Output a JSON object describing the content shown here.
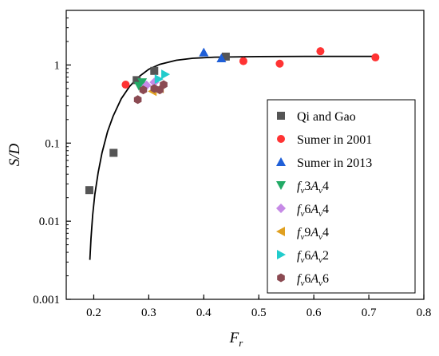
{
  "chart_data": {
    "type": "scatter",
    "title": "",
    "xlabel": {
      "main": "F",
      "sub": "r"
    },
    "ylabel": "S/D",
    "xlim": [
      0.15,
      0.8
    ],
    "ylim": [
      0.001,
      5
    ],
    "yscale": "log",
    "grid": false,
    "legend_position": "right",
    "x_ticks": [
      {
        "value": 0.2,
        "label": "0.2"
      },
      {
        "value": 0.3,
        "label": "0.3"
      },
      {
        "value": 0.4,
        "label": "0.4"
      },
      {
        "value": 0.5,
        "label": "0.5"
      },
      {
        "value": 0.6,
        "label": "0.6"
      },
      {
        "value": 0.7,
        "label": "0.7"
      },
      {
        "value": 0.8,
        "label": "0.8"
      }
    ],
    "y_ticks": [
      {
        "value": 0.001,
        "label": "0.001"
      },
      {
        "value": 0.01,
        "label": "0.01"
      },
      {
        "value": 0.1,
        "label": "0.1"
      },
      {
        "value": 1,
        "label": "1"
      }
    ],
    "series": [
      {
        "name": "Qi and Gao",
        "marker": "square",
        "color": "#555555",
        "points": [
          [
            0.192,
            0.025
          ],
          [
            0.236,
            0.075
          ],
          [
            0.278,
            0.64
          ],
          [
            0.31,
            0.84
          ],
          [
            0.44,
            1.28
          ]
        ]
      },
      {
        "name": "Sumer in 2001",
        "marker": "circle",
        "color": "#ff3333",
        "points": [
          [
            0.258,
            0.56
          ],
          [
            0.472,
            1.12
          ],
          [
            0.538,
            1.04
          ],
          [
            0.612,
            1.5
          ],
          [
            0.712,
            1.25
          ]
        ]
      },
      {
        "name": "Sumer in 2013",
        "marker": "triangle-up",
        "color": "#1f5fd8",
        "points": [
          [
            0.4,
            1.45
          ],
          [
            0.432,
            1.22
          ]
        ]
      },
      {
        "name": {
          "f": "f",
          "fsub": "v",
          "n1": "3",
          "A": "A",
          "Asub": "v",
          "n2": "4"
        },
        "marker": "triangle-down",
        "color": "#22aa66",
        "points": [
          [
            0.282,
            0.54
          ],
          [
            0.288,
            0.6
          ]
        ]
      },
      {
        "name": {
          "f": "f",
          "fsub": "v",
          "n1": "6",
          "A": "A",
          "Asub": "v",
          "n2": "4"
        },
        "marker": "diamond",
        "color": "#c68ae6",
        "points": [
          [
            0.296,
            0.55
          ],
          [
            0.31,
            0.6
          ]
        ]
      },
      {
        "name": {
          "f": "f",
          "fsub": "v",
          "n1": "9",
          "A": "A",
          "Asub": "v",
          "n2": "4"
        },
        "marker": "triangle-left",
        "color": "#e0a020",
        "points": [
          [
            0.307,
            0.46
          ],
          [
            0.32,
            0.5
          ]
        ]
      },
      {
        "name": {
          "f": "f",
          "fsub": "v",
          "n1": "6",
          "A": "A",
          "Asub": "v",
          "n2": "2"
        },
        "marker": "triangle-right",
        "color": "#22cccc",
        "points": [
          [
            0.318,
            0.66
          ],
          [
            0.33,
            0.76
          ]
        ]
      },
      {
        "name": {
          "f": "f",
          "fsub": "v",
          "n1": "6",
          "A": "A",
          "Asub": "v",
          "n2": "6"
        },
        "marker": "hexagon",
        "color": "#8b4a52",
        "points": [
          [
            0.28,
            0.36
          ],
          [
            0.29,
            0.48
          ],
          [
            0.31,
            0.5
          ],
          [
            0.32,
            0.48
          ],
          [
            0.327,
            0.56
          ]
        ]
      }
    ],
    "fit_curve": {
      "color": "#000000",
      "points": [
        [
          0.193,
          0.0032
        ],
        [
          0.195,
          0.006
        ],
        [
          0.198,
          0.012
        ],
        [
          0.202,
          0.022
        ],
        [
          0.208,
          0.042
        ],
        [
          0.215,
          0.075
        ],
        [
          0.225,
          0.14
        ],
        [
          0.235,
          0.22
        ],
        [
          0.25,
          0.37
        ],
        [
          0.265,
          0.53
        ],
        [
          0.28,
          0.69
        ],
        [
          0.3,
          0.88
        ],
        [
          0.32,
          1.02
        ],
        [
          0.35,
          1.15
        ],
        [
          0.38,
          1.22
        ],
        [
          0.42,
          1.26
        ],
        [
          0.5,
          1.28
        ],
        [
          0.6,
          1.29
        ],
        [
          0.712,
          1.29
        ]
      ]
    }
  }
}
